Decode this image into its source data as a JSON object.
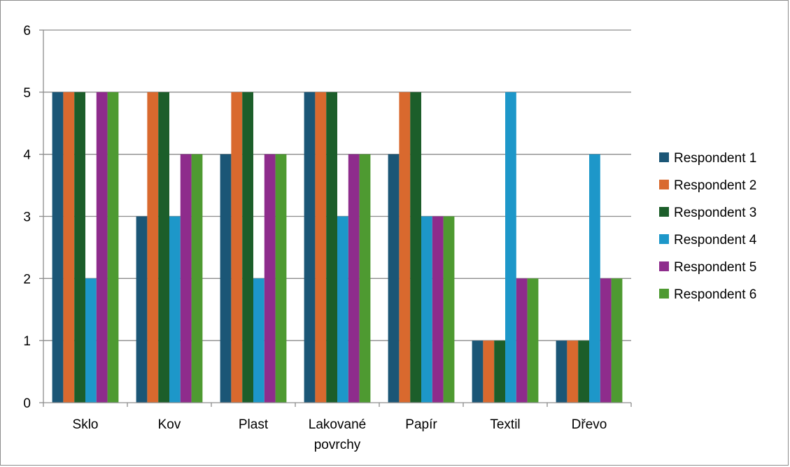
{
  "chart_data": {
    "type": "bar",
    "title": "",
    "xlabel": "",
    "ylabel": "",
    "ylim": [
      0,
      6
    ],
    "yticks": [
      0,
      1,
      2,
      3,
      4,
      5,
      6
    ],
    "grid": "horizontal",
    "legend_position": "right",
    "categories": [
      [
        "Sklo"
      ],
      [
        "Kov"
      ],
      [
        "Plast"
      ],
      [
        "Lakované",
        "povrchy"
      ],
      [
        "Papír"
      ],
      [
        "Textil"
      ],
      [
        "Dřevo"
      ]
    ],
    "series": [
      {
        "name": "Respondent 1",
        "color": "#1b5676",
        "values": [
          5,
          3,
          4,
          5,
          4,
          1,
          1
        ]
      },
      {
        "name": "Respondent 2",
        "color": "#d9692e",
        "values": [
          5,
          5,
          5,
          5,
          5,
          1,
          1
        ]
      },
      {
        "name": "Respondent 3",
        "color": "#1c5e2a",
        "values": [
          5,
          5,
          5,
          5,
          5,
          1,
          1
        ]
      },
      {
        "name": "Respondent 4",
        "color": "#1d97c9",
        "values": [
          2,
          3,
          2,
          3,
          3,
          5,
          4
        ]
      },
      {
        "name": "Respondent 5",
        "color": "#8e2c8c",
        "values": [
          5,
          4,
          4,
          4,
          3,
          2,
          2
        ]
      },
      {
        "name": "Respondent 6",
        "color": "#4e9a31",
        "values": [
          5,
          4,
          4,
          4,
          3,
          2,
          2
        ]
      }
    ]
  }
}
